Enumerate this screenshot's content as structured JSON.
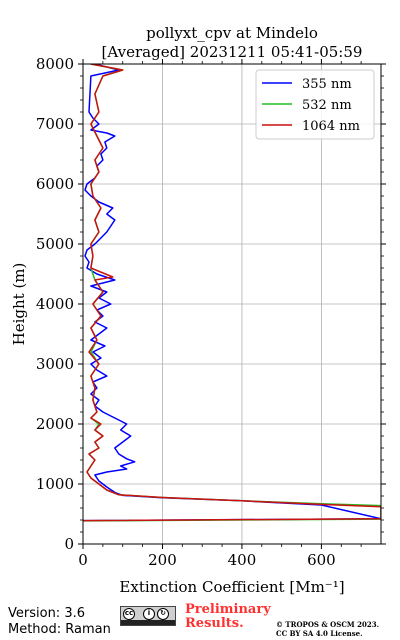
{
  "chart_data": {
    "type": "line",
    "title": "pollyxt_cpv at Mindelo",
    "subtitle": "[Averaged] 20231211 05:41-05:59",
    "xlabel": "Extinction Coefficient [Mm⁻¹]",
    "ylabel": "Height (m)",
    "xlim": [
      0,
      750
    ],
    "ylim": [
      0,
      8000
    ],
    "xticks": [
      0,
      200,
      400,
      600
    ],
    "yticks": [
      0,
      1000,
      2000,
      3000,
      4000,
      5000,
      6000,
      7000,
      8000
    ],
    "grid": true,
    "legend_position": "top-right",
    "series": [
      {
        "name": "355 nm",
        "color": "#0000ff",
        "points": [
          [
            0,
            390
          ],
          [
            750,
            420
          ],
          [
            600,
            650
          ],
          [
            400,
            720
          ],
          [
            200,
            770
          ],
          [
            100,
            810
          ],
          [
            80,
            860
          ],
          [
            60,
            950
          ],
          [
            40,
            1050
          ],
          [
            30,
            1150
          ],
          [
            60,
            1200
          ],
          [
            110,
            1250
          ],
          [
            95,
            1300
          ],
          [
            130,
            1370
          ],
          [
            110,
            1420
          ],
          [
            90,
            1500
          ],
          [
            80,
            1600
          ],
          [
            120,
            1800
          ],
          [
            95,
            1900
          ],
          [
            110,
            2000
          ],
          [
            80,
            2100
          ],
          [
            50,
            2200
          ],
          [
            30,
            2300
          ],
          [
            40,
            2400
          ],
          [
            20,
            2500
          ],
          [
            35,
            2600
          ],
          [
            25,
            2700
          ],
          [
            60,
            2800
          ],
          [
            35,
            2900
          ],
          [
            20,
            3000
          ],
          [
            45,
            3100
          ],
          [
            25,
            3200
          ],
          [
            55,
            3300
          ],
          [
            20,
            3400
          ],
          [
            40,
            3500
          ],
          [
            60,
            3600
          ],
          [
            30,
            3700
          ],
          [
            50,
            3800
          ],
          [
            35,
            3900
          ],
          [
            70,
            4000
          ],
          [
            40,
            4100
          ],
          [
            60,
            4200
          ],
          [
            20,
            4300
          ],
          [
            80,
            4400
          ],
          [
            35,
            4500
          ],
          [
            10,
            4600
          ],
          [
            15,
            4700
          ],
          [
            5,
            4800
          ],
          [
            10,
            4900
          ],
          [
            30,
            5000
          ],
          [
            45,
            5100
          ],
          [
            60,
            5200
          ],
          [
            70,
            5300
          ],
          [
            80,
            5400
          ],
          [
            60,
            5500
          ],
          [
            75,
            5600
          ],
          [
            40,
            5700
          ],
          [
            20,
            5800
          ],
          [
            5,
            5900
          ],
          [
            10,
            6000
          ],
          [
            30,
            6100
          ],
          [
            40,
            6200
          ],
          [
            35,
            6300
          ],
          [
            50,
            6400
          ],
          [
            45,
            6500
          ],
          [
            60,
            6600
          ],
          [
            55,
            6700
          ],
          [
            80,
            6800
          ],
          [
            60,
            6850
          ],
          [
            20,
            6900
          ],
          [
            40,
            7000
          ],
          [
            25,
            7100
          ],
          [
            15,
            7200
          ],
          [
            20,
            7800
          ],
          [
            90,
            7900
          ],
          [
            30,
            8000
          ]
        ]
      },
      {
        "name": "532 nm",
        "color": "#22bb22",
        "points": [
          [
            0,
            385
          ],
          [
            750,
            415
          ],
          [
            750,
            640
          ],
          [
            600,
            670
          ],
          [
            400,
            720
          ],
          [
            200,
            775
          ],
          [
            90,
            820
          ],
          [
            60,
            900
          ],
          [
            40,
            1000
          ],
          [
            20,
            1100
          ],
          [
            10,
            1200
          ],
          [
            20,
            1300
          ],
          [
            30,
            1400
          ],
          [
            15,
            1500
          ],
          [
            40,
            1600
          ],
          [
            30,
            1700
          ],
          [
            50,
            1800
          ],
          [
            30,
            1900
          ],
          [
            40,
            2000
          ],
          [
            20,
            2100
          ],
          [
            35,
            2200
          ],
          [
            25,
            2400
          ],
          [
            30,
            2600
          ],
          [
            20,
            2800
          ],
          [
            40,
            3000
          ],
          [
            20,
            3200
          ],
          [
            35,
            3400
          ],
          [
            20,
            3600
          ],
          [
            45,
            3800
          ],
          [
            25,
            4000
          ],
          [
            50,
            4200
          ],
          [
            30,
            4400
          ],
          [
            20,
            4600
          ],
          [
            25,
            4800
          ],
          [
            20,
            5000
          ],
          [
            40,
            5200
          ],
          [
            30,
            5400
          ],
          [
            45,
            5600
          ],
          [
            25,
            5800
          ],
          [
            20,
            6000
          ],
          [
            40,
            6200
          ],
          [
            30,
            6400
          ],
          [
            50,
            6600
          ],
          [
            35,
            6800
          ],
          [
            20,
            7000
          ],
          [
            40,
            7200
          ],
          [
            30,
            7500
          ],
          [
            50,
            7800
          ],
          [
            100,
            7900
          ],
          [
            20,
            8000
          ]
        ]
      },
      {
        "name": "1064 nm",
        "color": "#cc1111",
        "points": [
          [
            0,
            390
          ],
          [
            750,
            420
          ],
          [
            750,
            620
          ],
          [
            600,
            660
          ],
          [
            400,
            720
          ],
          [
            200,
            775
          ],
          [
            90,
            820
          ],
          [
            60,
            900
          ],
          [
            40,
            1000
          ],
          [
            20,
            1100
          ],
          [
            10,
            1200
          ],
          [
            20,
            1300
          ],
          [
            30,
            1400
          ],
          [
            15,
            1500
          ],
          [
            40,
            1600
          ],
          [
            30,
            1700
          ],
          [
            50,
            1800
          ],
          [
            30,
            1900
          ],
          [
            45,
            2000
          ],
          [
            20,
            2100
          ],
          [
            35,
            2200
          ],
          [
            25,
            2400
          ],
          [
            30,
            2600
          ],
          [
            20,
            2800
          ],
          [
            40,
            3000
          ],
          [
            15,
            3200
          ],
          [
            35,
            3400
          ],
          [
            20,
            3600
          ],
          [
            45,
            3800
          ],
          [
            25,
            4000
          ],
          [
            50,
            4200
          ],
          [
            30,
            4400
          ],
          [
            75,
            4450
          ],
          [
            20,
            4600
          ],
          [
            25,
            4800
          ],
          [
            20,
            5000
          ],
          [
            40,
            5200
          ],
          [
            30,
            5400
          ],
          [
            45,
            5600
          ],
          [
            25,
            5800
          ],
          [
            20,
            6000
          ],
          [
            40,
            6200
          ],
          [
            30,
            6400
          ],
          [
            50,
            6600
          ],
          [
            35,
            6800
          ],
          [
            20,
            7000
          ],
          [
            40,
            7200
          ],
          [
            30,
            7500
          ],
          [
            50,
            7800
          ],
          [
            100,
            7900
          ],
          [
            20,
            8000
          ]
        ]
      }
    ]
  },
  "footer": {
    "version": "Version: 3.6",
    "method": "Method: Raman",
    "license_icons": [
      "cc",
      "by",
      "sa"
    ],
    "preliminary_line1": "Preliminary",
    "preliminary_line2": "Results.",
    "copyright_line1": "© TROPOS & OSCM 2023.",
    "copyright_line2": "CC BY SA 4.0 License."
  }
}
